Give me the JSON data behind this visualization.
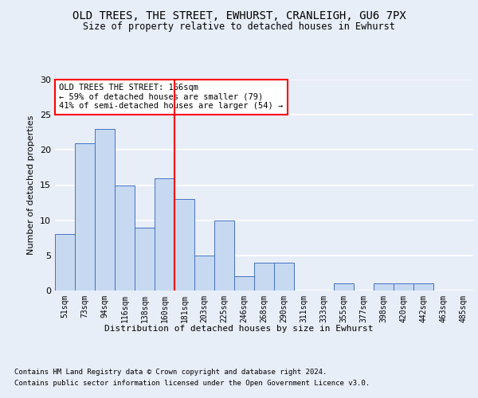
{
  "title": "OLD TREES, THE STREET, EWHURST, CRANLEIGH, GU6 7PX",
  "subtitle": "Size of property relative to detached houses in Ewhurst",
  "xlabel": "Distribution of detached houses by size in Ewhurst",
  "ylabel": "Number of detached properties",
  "categories": [
    "51sqm",
    "73sqm",
    "94sqm",
    "116sqm",
    "138sqm",
    "160sqm",
    "181sqm",
    "203sqm",
    "225sqm",
    "246sqm",
    "268sqm",
    "290sqm",
    "311sqm",
    "333sqm",
    "355sqm",
    "377sqm",
    "398sqm",
    "420sqm",
    "442sqm",
    "463sqm",
    "485sqm"
  ],
  "values": [
    8,
    21,
    23,
    15,
    9,
    16,
    13,
    5,
    10,
    2,
    4,
    4,
    0,
    0,
    1,
    0,
    1,
    1,
    1,
    0,
    0
  ],
  "bar_color": "#c6d9f0",
  "bar_edge_color": "#4472c4",
  "red_line_x": 5.5,
  "annotation_text": "OLD TREES THE STREET: 166sqm\n← 59% of detached houses are smaller (79)\n41% of semi-detached houses are larger (54) →",
  "annotation_box_color": "white",
  "annotation_box_edge": "red",
  "ylim": [
    0,
    30
  ],
  "yticks": [
    0,
    5,
    10,
    15,
    20,
    25,
    30
  ],
  "footnote1": "Contains HM Land Registry data © Crown copyright and database right 2024.",
  "footnote2": "Contains public sector information licensed under the Open Government Licence v3.0.",
  "bg_color": "#e8eef8",
  "plot_bg_color": "#e8eef8"
}
